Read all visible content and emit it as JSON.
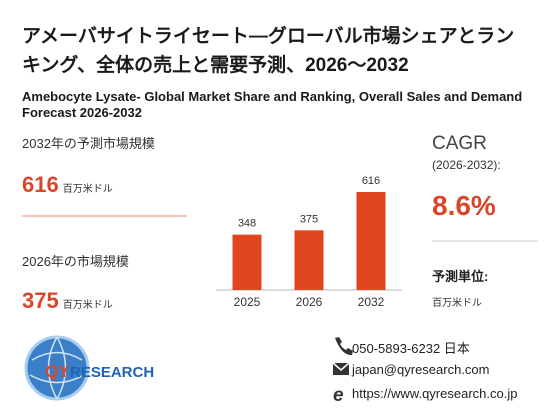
{
  "title": "アメーバサイトライセート—グローバル市場シェアとランキング、全体の売上と需要予測、2026～2032",
  "subtitle": "Amebocyte Lysate- Global Market Share and Ranking, Overall Sales and Demand Forecast 2026-2032",
  "forecast_label": "2032年の予測市場規模",
  "current_label": "2026年の市場規模",
  "unit_short": "百万米ドル",
  "cagr": {
    "label": "CAGR",
    "period": "(2026-2032):",
    "value": "8.6%"
  },
  "forecast_unit": {
    "label": "予測単位:",
    "value": "百万米ドル"
  },
  "logo": {
    "part1": "QY",
    "part2": "RESEARCH"
  },
  "contacts": {
    "phone": "050-5893-6232 日本",
    "email": "japan@qyresearch.com",
    "web": "https://www.qyresearch.co.jp"
  },
  "chart_data": {
    "type": "bar",
    "categories": [
      "2025",
      "2026",
      "2032"
    ],
    "values": [
      348,
      375,
      616
    ],
    "color": "#e0451f"
  }
}
